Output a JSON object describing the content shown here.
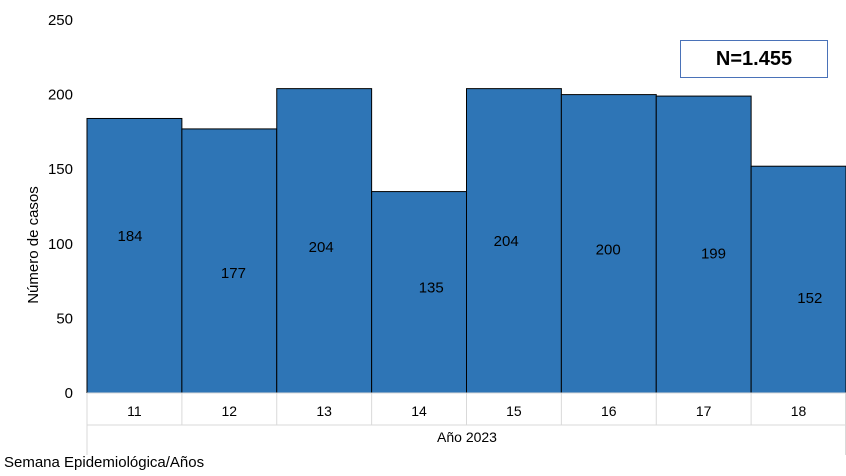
{
  "chart_data": {
    "type": "bar",
    "categories": [
      "11",
      "12",
      "13",
      "14",
      "15",
      "16",
      "17",
      "18"
    ],
    "group_label": "Año 2023",
    "values": [
      184,
      177,
      204,
      135,
      204,
      200,
      199,
      152
    ],
    "data_labels": [
      "184",
      "177",
      "204",
      "135",
      "204",
      "200",
      "199",
      "152"
    ],
    "ylabel": "Número de casos",
    "xlabel": "Semana Epidemiológica/Años",
    "ylim": [
      0,
      250
    ],
    "yticks": [
      "0",
      "50",
      "100",
      "150",
      "200",
      "250"
    ],
    "grid": false,
    "bar_color": "#2e75b6",
    "bar_edge_color": "#000000"
  },
  "total_label": "N=1.455"
}
